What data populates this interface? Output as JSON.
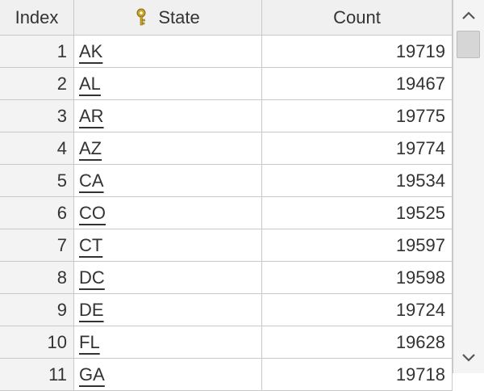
{
  "table": {
    "columns": {
      "index": "Index",
      "state": "State",
      "count": "Count"
    },
    "rows": [
      {
        "index": "1",
        "state": "AK",
        "count": "19719"
      },
      {
        "index": "2",
        "state": "AL",
        "count": "19467"
      },
      {
        "index": "3",
        "state": "AR",
        "count": "19775"
      },
      {
        "index": "4",
        "state": "AZ",
        "count": "19774"
      },
      {
        "index": "5",
        "state": "CA",
        "count": "19534"
      },
      {
        "index": "6",
        "state": "CO",
        "count": "19525"
      },
      {
        "index": "7",
        "state": "CT",
        "count": "19597"
      },
      {
        "index": "8",
        "state": "DC",
        "count": "19598"
      },
      {
        "index": "9",
        "state": "DE",
        "count": "19724"
      },
      {
        "index": "10",
        "state": "FL",
        "count": "19628"
      },
      {
        "index": "11",
        "state": "GA",
        "count": "19718"
      }
    ]
  },
  "icons": {
    "state_header": "key-icon",
    "scroll_up": "chevron-up-icon",
    "scroll_down": "chevron-down-icon"
  },
  "colors": {
    "header_bg": "#f0f0f0",
    "grid_line": "#c8c8c8",
    "text": "#333333",
    "key_icon": "#c9a227"
  }
}
